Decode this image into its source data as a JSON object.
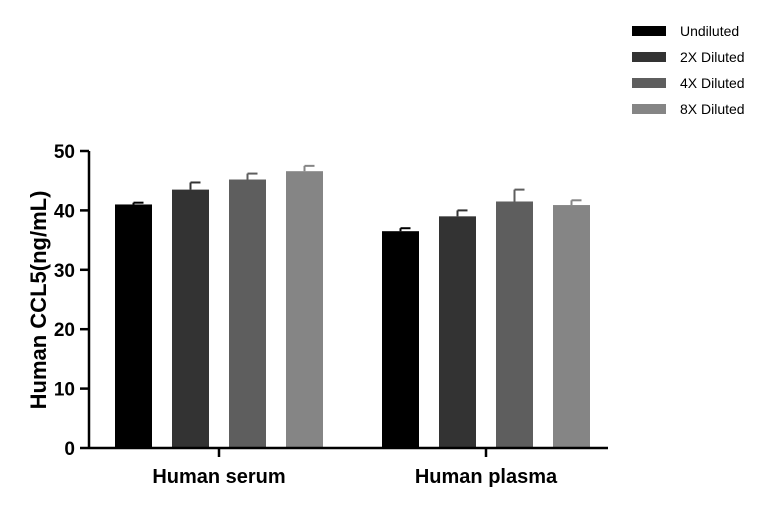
{
  "chart_data": {
    "type": "bar",
    "categories": [
      "Human serum",
      "Human plasma"
    ],
    "series": [
      {
        "name": "Undiluted",
        "values": [
          41.0,
          36.5
        ],
        "errors": [
          0.3,
          0.5
        ],
        "color": "#000000"
      },
      {
        "name": "2X Diluted",
        "values": [
          43.5,
          39.0
        ],
        "errors": [
          1.2,
          1.0
        ],
        "color": "#333333"
      },
      {
        "name": "4X Diluted",
        "values": [
          45.2,
          41.5
        ],
        "errors": [
          1.0,
          2.0
        ],
        "color": "#5e5e5e"
      },
      {
        "name": "8X Diluted",
        "values": [
          46.6,
          40.9
        ],
        "errors": [
          0.9,
          0.8
        ],
        "color": "#858585"
      }
    ],
    "ylabel": "Human CCL5(ng/mL)",
    "xlabel": "",
    "ylim": [
      0,
      50
    ],
    "yticks": [
      0,
      10,
      20,
      30,
      40,
      50
    ],
    "legend_position": "top-right",
    "grid": false
  }
}
